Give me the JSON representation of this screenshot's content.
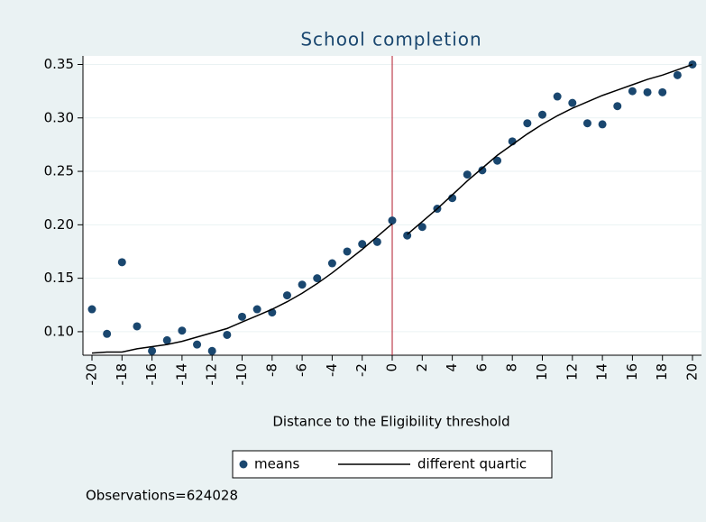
{
  "chart_data": {
    "type": "scatter",
    "title": "School completion",
    "x_label": "Distance to the Eligibility threshold",
    "note": "Observations=624028",
    "xlim": [
      -20.6,
      20.6
    ],
    "ylim": [
      0.078,
      0.358
    ],
    "xticks": [
      -20,
      -18,
      -16,
      -14,
      -12,
      -10,
      -8,
      -6,
      -4,
      -2,
      0,
      2,
      4,
      6,
      8,
      10,
      12,
      14,
      16,
      18,
      20
    ],
    "yticks": [
      {
        "value": 0.1,
        "label": "0.10"
      },
      0.15,
      {
        "value": 0.2,
        "label": "0.20"
      },
      0.25,
      {
        "value": 0.3,
        "label": "0.30"
      },
      0.35
    ],
    "grid": true,
    "xline": 0,
    "xline_color": "#b2182b",
    "series": [
      {
        "name": "means",
        "kind": "points",
        "color": "#1a476f",
        "x": [
          -20,
          -19,
          -18,
          -17,
          -16,
          -15,
          -14,
          -13,
          -12,
          -11,
          -10,
          -9,
          -8,
          -7,
          -6,
          -5,
          -4,
          -3,
          -2,
          -1,
          0,
          1,
          2,
          3,
          4,
          5,
          6,
          7,
          8,
          9,
          10,
          11,
          12,
          13,
          14,
          15,
          16,
          17,
          18,
          19,
          20
        ],
        "values": [
          0.121,
          0.098,
          0.165,
          0.105,
          0.082,
          0.092,
          0.101,
          0.088,
          0.082,
          0.097,
          0.114,
          0.121,
          0.118,
          0.134,
          0.144,
          0.15,
          0.164,
          0.175,
          0.182,
          0.184,
          0.204,
          0.19,
          0.198,
          0.215,
          0.225,
          0.247,
          0.251,
          0.26,
          0.278,
          0.295,
          0.303,
          0.32,
          0.314,
          0.295,
          0.294,
          0.311,
          0.325,
          0.324,
          0.324,
          0.34,
          0.35
        ]
      },
      {
        "name": "different quartic",
        "kind": "line",
        "color": "#000000",
        "x": [
          -20,
          -19,
          -18,
          -17,
          -16,
          -15,
          -14,
          -13,
          -12,
          -11,
          -10,
          -9,
          -8,
          -7,
          -6,
          -5,
          -4,
          -3,
          -2,
          -1,
          0,
          null,
          1,
          2,
          3,
          4,
          5,
          6,
          7,
          8,
          9,
          10,
          11,
          12,
          13,
          14,
          15,
          16,
          17,
          18,
          19,
          20
        ],
        "values": [
          0.08,
          0.081,
          0.081,
          0.084,
          0.086,
          0.088,
          0.091,
          0.095,
          0.099,
          0.103,
          0.109,
          0.115,
          0.121,
          0.128,
          0.136,
          0.145,
          0.155,
          0.166,
          0.177,
          0.189,
          0.201,
          null,
          0.191,
          0.203,
          0.215,
          0.228,
          0.241,
          0.253,
          0.265,
          0.275,
          0.285,
          0.294,
          0.302,
          0.309,
          0.315,
          0.321,
          0.326,
          0.331,
          0.336,
          0.34,
          0.345,
          0.35
        ]
      }
    ]
  }
}
